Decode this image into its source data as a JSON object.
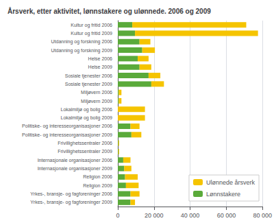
{
  "chart_data": {
    "type": "bar",
    "orientation": "horizontal",
    "stacked": true,
    "title": "Årsverk, etter aktivitet, lønnstakere og ulønnede. 2006 og 2009",
    "categories": [
      "Kultur og fritid 2006",
      "Kultur og fritid 2009",
      "Utdanning og forskning 2006",
      "Utdanning og forskning 2009",
      "Helse 2006",
      "Helse 2009",
      "Sosiale tjenester 2006",
      "Sosiale tjenester 2009",
      "Miljøvern 2006",
      "Miljøvern 2009",
      "Lokalmiljø og bolig 2006",
      "Lokalmiljø og bolig 2009",
      "Politiske- og interesseorganisasjoner 2006",
      "Politiske- og interesseorganisasjoner 2009",
      "Frivillighetssentraler 2006",
      "Frivillighetssentraler 2009",
      "Internasjonale organisasjoner 2006",
      "Internasjonale organisasjoner 2009",
      "Religion 2006",
      "Religion 2009",
      "Yrkes-, bransje- og fagforeninger 2006",
      "Yrkes-, bransje- og fagforeninger 2009"
    ],
    "series": [
      {
        "name": "Lønnstakere",
        "color": "#5aaa3a",
        "values": [
          8000,
          9500,
          12000,
          13500,
          11000,
          12000,
          17000,
          18500,
          500,
          500,
          0,
          0,
          7000,
          7500,
          300,
          300,
          3000,
          3500,
          4000,
          4500,
          7000,
          7000
        ]
      },
      {
        "name": "Ulønnede årsverk",
        "color": "#f5c400",
        "values": [
          63000,
          68000,
          6000,
          7000,
          6000,
          6500,
          6500,
          7000,
          1500,
          1500,
          15000,
          15000,
          5000,
          5500,
          400,
          400,
          4000,
          4000,
          7000,
          7000,
          5000,
          2500
        ]
      }
    ],
    "xlim": [
      0,
      80000
    ],
    "xticks": [
      0,
      {
        "value": 20000,
        "label": "20 000"
      },
      {
        "value": 40000,
        "label": "40 000"
      },
      {
        "value": 60000,
        "label": "60 000"
      },
      {
        "value": 80000,
        "label": "80 000"
      }
    ],
    "grid": true,
    "legend": "lower right"
  }
}
